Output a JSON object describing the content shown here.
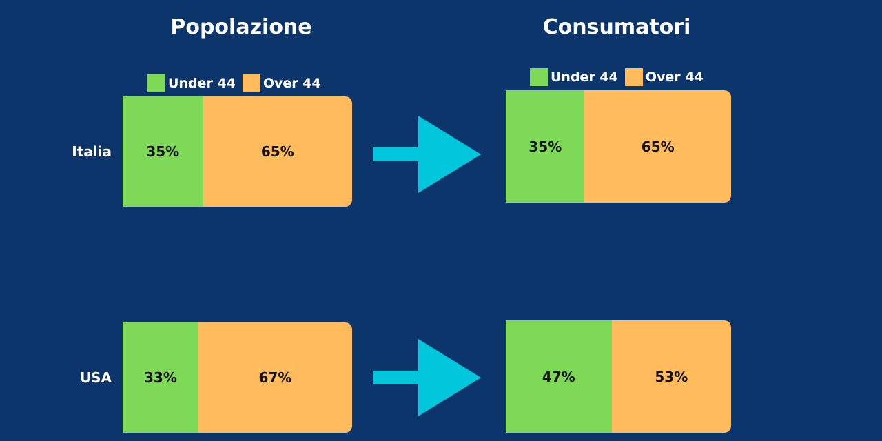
{
  "colors": {
    "background": "#0c356c",
    "under": "#7ed957",
    "over": "#ffbb5c",
    "arrow": "#00c7db"
  },
  "panels": {
    "left_title": "Popolazione",
    "right_title": "Consumatori"
  },
  "legend": {
    "under": "Under 44",
    "over": "Over 44"
  },
  "chart_data": [
    {
      "type": "bar",
      "stacked": true,
      "orientation": "horizontal",
      "title": "Popolazione",
      "categories": [
        "Italia",
        "USA"
      ],
      "series": [
        {
          "name": "Under 44",
          "values": [
            35,
            33
          ],
          "labels": [
            "35%",
            "33%"
          ]
        },
        {
          "name": "Over 44",
          "values": [
            65,
            67
          ],
          "labels": [
            "65%",
            "67%"
          ]
        }
      ]
    },
    {
      "type": "bar",
      "stacked": true,
      "orientation": "horizontal",
      "title": "Consumatori",
      "categories": [
        "Italia",
        "USA"
      ],
      "series": [
        {
          "name": "Under 44",
          "values": [
            35,
            47
          ],
          "labels": [
            "35%",
            "47%"
          ]
        },
        {
          "name": "Over 44",
          "values": [
            65,
            53
          ],
          "labels": [
            "65%",
            "53%"
          ]
        }
      ]
    }
  ]
}
